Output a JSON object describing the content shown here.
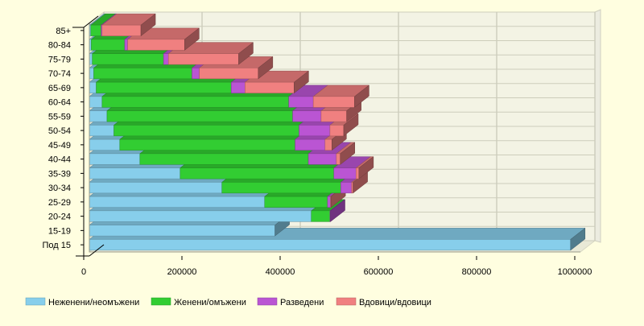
{
  "chart_data": {
    "type": "bar",
    "orientation": "horizontal",
    "stacked": true,
    "three_d": true,
    "categories": [
      "Под 15",
      "15-19",
      "20-24",
      "25-29",
      "30-34",
      "35-39",
      "40-44",
      "45-49",
      "50-54",
      "55-59",
      "60-64",
      "65-69",
      "70-74",
      "75-79",
      "80-84",
      "85+"
    ],
    "series": [
      {
        "name": "Неженени/неомъжени",
        "color": "#87ceeb",
        "values": [
          980000,
          378000,
          452000,
          357000,
          270000,
          185000,
          103000,
          62000,
          50000,
          36000,
          26000,
          14000,
          9000,
          6000,
          4000,
          3000
        ]
      },
      {
        "name": "Женени/омъжени",
        "color": "#32cd32",
        "values": [
          0,
          0,
          38000,
          128000,
          242000,
          313000,
          343000,
          357000,
          377000,
          378000,
          380000,
          275000,
          200000,
          145000,
          68000,
          21000
        ]
      },
      {
        "name": "Разведени",
        "color": "#ba55d3",
        "values": [
          0,
          0,
          1000,
          6000,
          22000,
          45000,
          57000,
          61000,
          63000,
          58000,
          50000,
          28000,
          15000,
          10000,
          6000,
          2000
        ]
      },
      {
        "name": "Вдовици/вдовици",
        "color": "#f08080",
        "values": [
          0,
          0,
          0,
          1000,
          3000,
          6000,
          8000,
          14000,
          28000,
          52000,
          84000,
          100000,
          120000,
          143000,
          116000,
          79000
        ]
      }
    ],
    "xlim": [
      0,
      1000000
    ],
    "x_ticks": [
      "0",
      "200000",
      "400000",
      "600000",
      "800000",
      "1000000"
    ],
    "grid": true,
    "legend_position": "bottom-left"
  }
}
